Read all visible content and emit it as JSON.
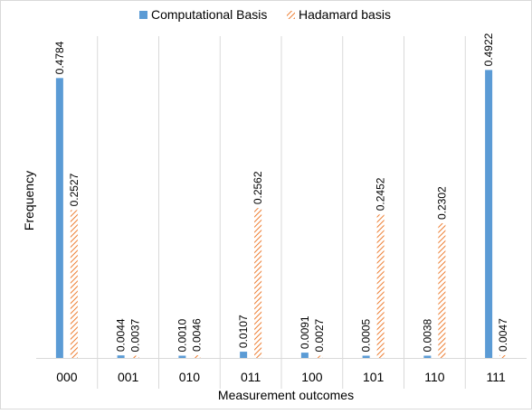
{
  "chart_data": {
    "type": "bar",
    "xlabel": "Measurement outcomes",
    "ylabel": "Frequency",
    "categories": [
      "000",
      "001",
      "010",
      "011",
      "100",
      "101",
      "110",
      "111"
    ],
    "ylim": [
      0,
      0.55
    ],
    "grid": "vertical category separators",
    "legend_position": "top",
    "series": [
      {
        "name": "Computational Basis",
        "pattern": "solid",
        "color": "#5B9BD5",
        "values": [
          0.4784,
          0.0044,
          0.001,
          0.0107,
          0.0091,
          0.0005,
          0.0038,
          0.4922
        ],
        "labels": [
          "0.4784",
          "0.0044",
          "0.0010",
          "0.0107",
          "0.0091",
          "0.0005",
          "0.0038",
          "0.4922"
        ]
      },
      {
        "name": "Hadamard basis",
        "pattern": "diagonal-hatch",
        "color": "#ED7D31",
        "values": [
          0.2527,
          0.0037,
          0.0046,
          0.2562,
          0.0027,
          0.2452,
          0.2302,
          0.0047
        ],
        "labels": [
          "0.2527",
          "0.0037",
          "0.0046",
          "0.2562",
          "0.0027",
          "0.2452",
          "0.2302",
          "0.0047"
        ]
      }
    ]
  }
}
